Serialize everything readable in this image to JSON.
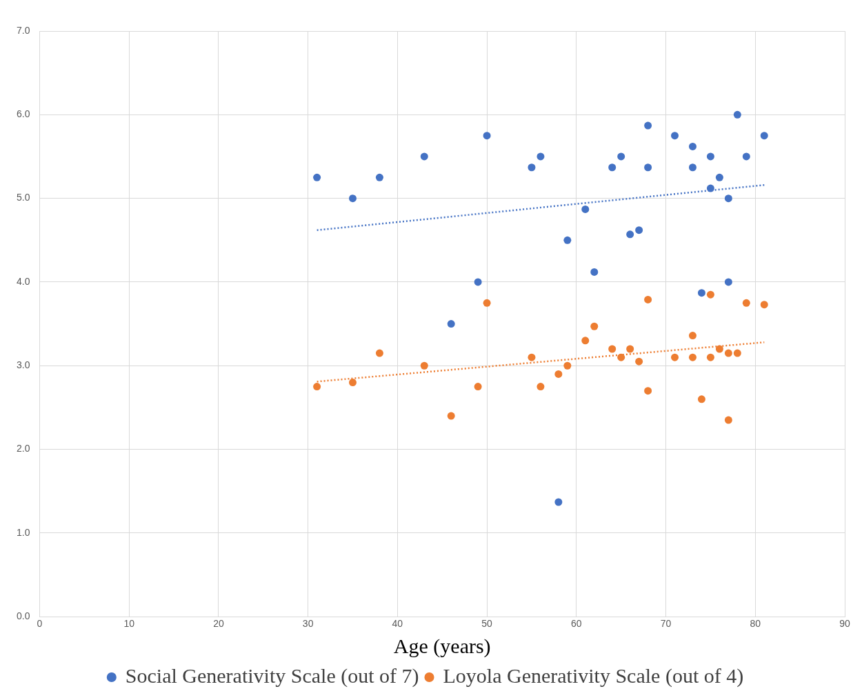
{
  "chart_data": {
    "type": "scatter",
    "xlabel": "Age (years)",
    "xlim": [
      0,
      90
    ],
    "xticks": [
      0,
      10,
      20,
      30,
      40,
      50,
      60,
      70,
      80,
      90
    ],
    "ylim": [
      0,
      7
    ],
    "yticks": [
      {
        "value": 0,
        "label": "0.0"
      },
      {
        "value": 1,
        "label": "1.0"
      },
      {
        "value": 2,
        "label": "2.0"
      },
      {
        "value": 3,
        "label": "3.0"
      },
      {
        "value": 4,
        "label": "4.0"
      },
      {
        "value": 5,
        "label": "5.0"
      },
      {
        "value": 6,
        "label": "6.0"
      },
      {
        "value": 7,
        "label": "7.0"
      }
    ],
    "grid": true,
    "legend": "bottom",
    "marker": "circle",
    "series": [
      {
        "name": "Social Generativity Scale (out of 7)",
        "color": "#4472c4",
        "x": [
          31,
          35,
          38,
          43,
          50,
          55,
          56,
          58,
          59,
          61,
          62,
          64,
          65,
          66,
          67,
          68,
          68,
          71,
          73,
          73,
          74,
          75,
          75,
          76,
          77,
          77,
          78,
          79,
          81,
          49,
          46
        ],
        "values": [
          5.25,
          5.0,
          5.25,
          5.5,
          5.75,
          5.37,
          5.5,
          1.37,
          4.5,
          4.87,
          4.12,
          5.37,
          5.5,
          4.57,
          4.62,
          5.87,
          5.37,
          5.75,
          5.62,
          5.37,
          3.87,
          5.5,
          5.12,
          5.25,
          5.0,
          4.0,
          6.0,
          5.5,
          5.75,
          4.0,
          3.5
        ]
      },
      {
        "name": "Loyola Generativity Scale (out of 4)",
        "color": "#ed7d31",
        "x": [
          31,
          35,
          38,
          43,
          46,
          49,
          50,
          55,
          56,
          58,
          59,
          61,
          62,
          64,
          65,
          66,
          67,
          68,
          68,
          71,
          73,
          73,
          74,
          75,
          75,
          76,
          77,
          77,
          78,
          79,
          81
        ],
        "values": [
          2.75,
          2.8,
          3.15,
          3.0,
          2.4,
          2.75,
          3.75,
          3.1,
          2.75,
          2.9,
          3.0,
          3.3,
          3.47,
          3.2,
          3.1,
          3.2,
          3.05,
          3.79,
          2.7,
          3.1,
          3.36,
          3.1,
          2.6,
          3.85,
          3.1,
          3.2,
          3.15,
          2.35,
          3.15,
          3.75,
          3.73
        ]
      },
      {
        "type": "line",
        "color": "#4472c4",
        "x": [
          31,
          81
        ],
        "values": [
          4.62,
          5.16
        ],
        "line_style": "dotted",
        "marker": "none"
      },
      {
        "type": "line",
        "color": "#ed7d31",
        "x": [
          31,
          81
        ],
        "values": [
          2.81,
          3.28
        ],
        "line_style": "dotted",
        "marker": "none"
      }
    ]
  }
}
